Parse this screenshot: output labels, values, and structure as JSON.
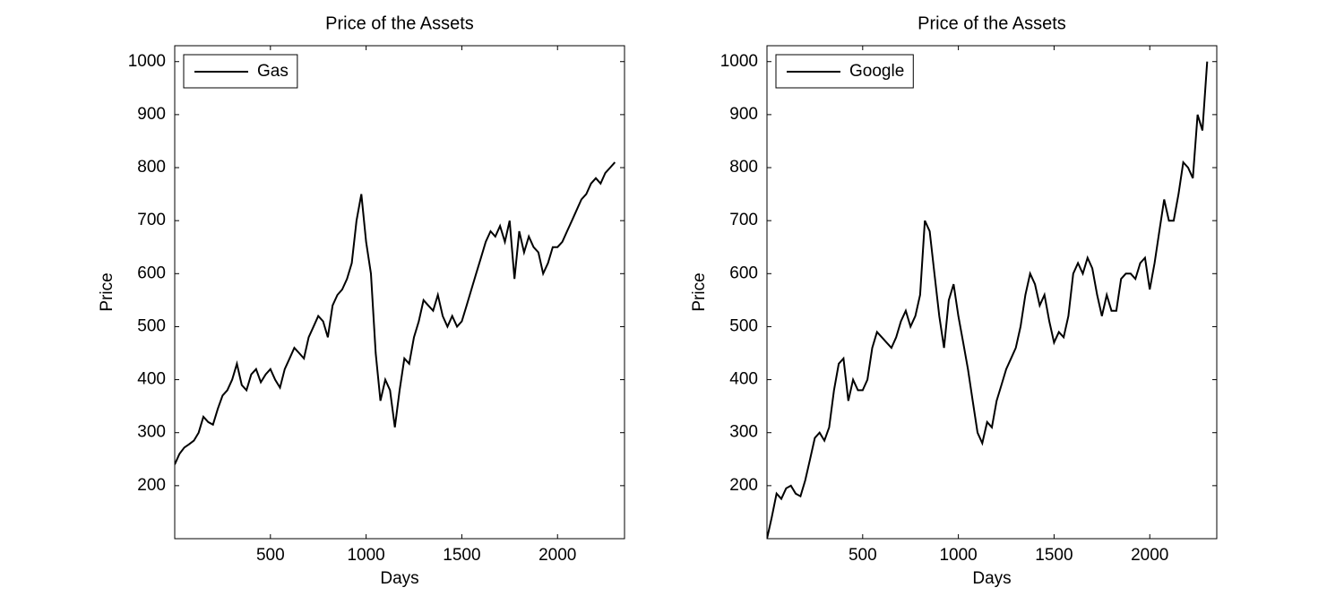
{
  "chart_data": [
    {
      "type": "line",
      "title": "Price of the Assets",
      "xlabel": "Days",
      "ylabel": "Price",
      "xlim": [
        0,
        2350
      ],
      "ylim": [
        100,
        1030
      ],
      "xticks": [
        500,
        1000,
        1500,
        2000
      ],
      "yticks": [
        200,
        300,
        400,
        500,
        600,
        700,
        800,
        900,
        1000
      ],
      "legend": "upper left",
      "x": [
        0,
        25,
        50,
        75,
        100,
        125,
        150,
        175,
        200,
        225,
        250,
        275,
        300,
        325,
        350,
        375,
        400,
        425,
        450,
        475,
        500,
        525,
        550,
        575,
        600,
        625,
        650,
        675,
        700,
        725,
        750,
        775,
        800,
        825,
        850,
        875,
        900,
        925,
        950,
        975,
        1000,
        1025,
        1050,
        1075,
        1100,
        1125,
        1150,
        1175,
        1200,
        1225,
        1250,
        1275,
        1300,
        1325,
        1350,
        1375,
        1400,
        1425,
        1450,
        1475,
        1500,
        1525,
        1550,
        1575,
        1600,
        1625,
        1650,
        1675,
        1700,
        1725,
        1750,
        1775,
        1800,
        1825,
        1850,
        1875,
        1900,
        1925,
        1950,
        1975,
        2000,
        2025,
        2050,
        2075,
        2100,
        2125,
        2150,
        2175,
        2200,
        2225,
        2250,
        2275,
        2300
      ],
      "series": [
        {
          "name": "Gas",
          "color": "#000000",
          "values": [
            240,
            260,
            272,
            278,
            285,
            300,
            330,
            320,
            315,
            345,
            370,
            380,
            400,
            430,
            390,
            380,
            410,
            420,
            395,
            410,
            420,
            400,
            385,
            420,
            440,
            460,
            450,
            440,
            480,
            500,
            520,
            510,
            480,
            540,
            560,
            570,
            590,
            620,
            700,
            750,
            660,
            600,
            450,
            360,
            400,
            380,
            310,
            380,
            440,
            430,
            480,
            510,
            550,
            540,
            530,
            560,
            520,
            500,
            520,
            500,
            510,
            540,
            570,
            600,
            630,
            660,
            680,
            670,
            690,
            660,
            700,
            590,
            680,
            640,
            670,
            650,
            640,
            600,
            620,
            650,
            650,
            660,
            680,
            700,
            720,
            740,
            750,
            770,
            780,
            770,
            790,
            800,
            810
          ]
        }
      ]
    },
    {
      "type": "line",
      "title": "Price of the Assets",
      "xlabel": "Days",
      "ylabel": "Price",
      "xlim": [
        0,
        2350
      ],
      "ylim": [
        100,
        1030
      ],
      "xticks": [
        500,
        1000,
        1500,
        2000
      ],
      "yticks": [
        200,
        300,
        400,
        500,
        600,
        700,
        800,
        900,
        1000
      ],
      "legend": "upper left",
      "x": [
        0,
        25,
        50,
        75,
        100,
        125,
        150,
        175,
        200,
        225,
        250,
        275,
        300,
        325,
        350,
        375,
        400,
        425,
        450,
        475,
        500,
        525,
        550,
        575,
        600,
        625,
        650,
        675,
        700,
        725,
        750,
        775,
        800,
        825,
        850,
        875,
        900,
        925,
        950,
        975,
        1000,
        1025,
        1050,
        1075,
        1100,
        1125,
        1150,
        1175,
        1200,
        1225,
        1250,
        1275,
        1300,
        1325,
        1350,
        1375,
        1400,
        1425,
        1450,
        1475,
        1500,
        1525,
        1550,
        1575,
        1600,
        1625,
        1650,
        1675,
        1700,
        1725,
        1750,
        1775,
        1800,
        1825,
        1850,
        1875,
        1900,
        1925,
        1950,
        1975,
        2000,
        2025,
        2050,
        2075,
        2100,
        2125,
        2150,
        2175,
        2200,
        2225,
        2250,
        2275,
        2300
      ],
      "series": [
        {
          "name": "Google",
          "color": "#000000",
          "values": [
            100,
            140,
            185,
            175,
            195,
            200,
            185,
            180,
            210,
            250,
            290,
            300,
            285,
            310,
            380,
            430,
            440,
            360,
            400,
            380,
            380,
            400,
            460,
            490,
            480,
            470,
            460,
            480,
            510,
            530,
            500,
            520,
            560,
            700,
            680,
            600,
            520,
            460,
            550,
            580,
            520,
            470,
            420,
            360,
            300,
            280,
            320,
            310,
            360,
            390,
            420,
            440,
            460,
            500,
            560,
            600,
            580,
            540,
            560,
            510,
            470,
            490,
            480,
            520,
            600,
            620,
            600,
            630,
            610,
            560,
            520,
            560,
            530,
            530,
            590,
            600,
            600,
            590,
            620,
            630,
            570,
            620,
            680,
            740,
            700,
            700,
            750,
            810,
            800,
            780,
            900,
            870,
            1000
          ]
        }
      ]
    }
  ]
}
